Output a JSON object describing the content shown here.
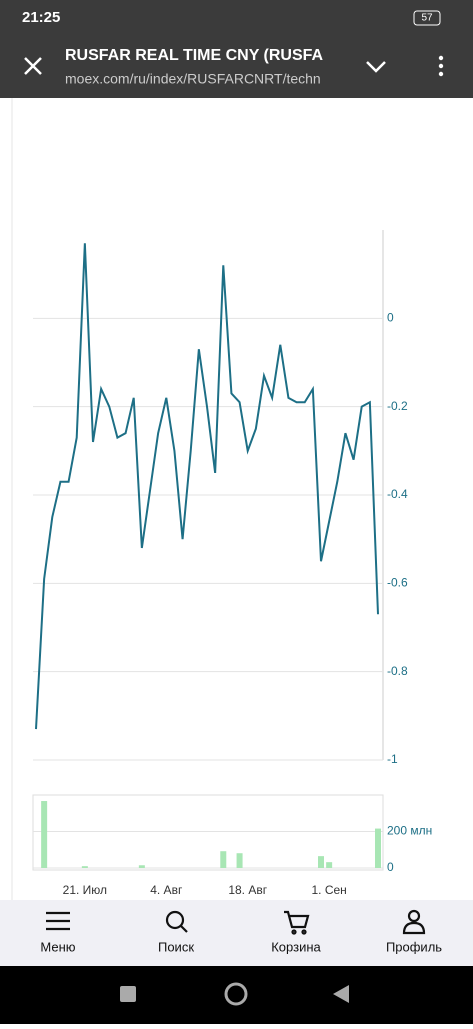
{
  "status": {
    "time": "21:25",
    "battery": "57"
  },
  "header": {
    "title": "RUSFAR REAL TIME CNY (RUSFA",
    "url": "moex.com/ru/index/RUSFARCNRT/techn"
  },
  "nav": [
    "Меню",
    "Поиск",
    "Корзина",
    "Профиль"
  ],
  "chart_data": [
    {
      "type": "line",
      "color": "#1d6f86",
      "values": [
        -0.93,
        -0.59,
        -0.45,
        -0.37,
        -0.37,
        -0.27,
        0.17,
        -0.28,
        -0.16,
        -0.2,
        -0.27,
        -0.26,
        -0.18,
        -0.52,
        -0.39,
        -0.26,
        -0.18,
        -0.3,
        -0.5,
        -0.3,
        -0.07,
        -0.2,
        -0.35,
        0.12,
        -0.17,
        -0.19,
        -0.3,
        -0.25,
        -0.13,
        -0.18,
        -0.06,
        -0.18,
        -0.19,
        -0.19,
        -0.16,
        -0.55,
        -0.46,
        -0.37,
        -0.26,
        -0.32,
        -0.2,
        -0.19,
        -0.67
      ],
      "ylim": [
        -1,
        0.2
      ],
      "yticks": [
        0,
        -0.2,
        -0.4,
        -0.6,
        -0.8,
        -1
      ],
      "grid": true
    },
    {
      "type": "bar",
      "color": "#a8e6b4",
      "categories": [
        null,
        null,
        null,
        null,
        null,
        null,
        "21. Июл",
        null,
        null,
        null,
        null,
        null,
        null,
        null,
        null,
        null,
        "4. Авг",
        null,
        null,
        null,
        null,
        null,
        null,
        null,
        null,
        null,
        "18. Авг",
        null,
        null,
        null,
        null,
        null,
        null,
        null,
        null,
        null,
        "1. Сен",
        null,
        null,
        null,
        null,
        null,
        null
      ],
      "values": [
        0,
        367000000,
        0,
        0,
        0,
        0,
        10000000,
        0,
        0,
        0,
        0,
        0,
        0,
        15000000,
        0,
        0,
        0,
        0,
        0,
        0,
        0,
        0,
        0,
        92000000,
        0,
        81000000,
        0,
        0,
        0,
        0,
        0,
        0,
        0,
        0,
        0,
        65000000,
        32000000,
        0,
        0,
        0,
        0,
        0,
        216000000
      ],
      "ylim": [
        0,
        400000000
      ],
      "yticks": [
        0,
        {
          "value": 200000000,
          "label": "200 млн"
        }
      ],
      "grid": true
    }
  ]
}
